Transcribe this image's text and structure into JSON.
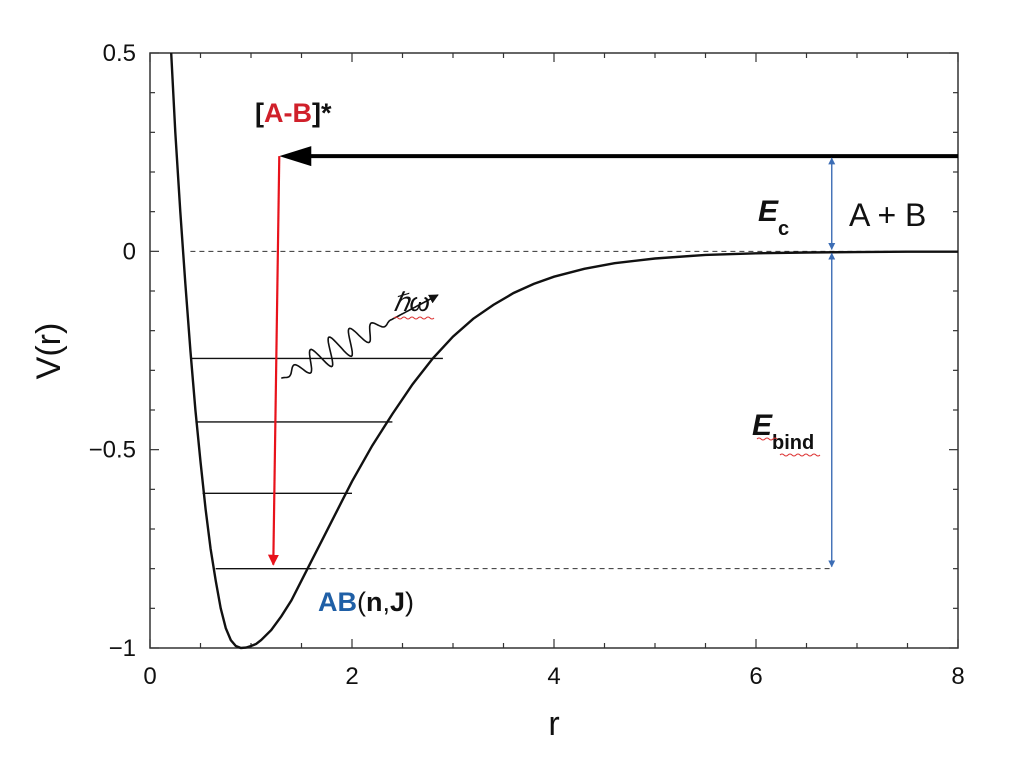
{
  "chart_data": {
    "type": "line",
    "xlabel": "r",
    "ylabel": "V(r)",
    "xlim": [
      0,
      8
    ],
    "ylim": [
      -1,
      0.5
    ],
    "x_ticks": [
      "0",
      "2",
      "4",
      "6",
      "8"
    ],
    "y_ticks": [
      "0.5",
      "0",
      "−0.5",
      "−1"
    ],
    "y_tick_values": [
      0.5,
      0,
      -0.5,
      -1
    ],
    "x_tick_values": [
      0,
      2,
      4,
      6,
      8
    ],
    "grid": false,
    "series": [
      {
        "x": [
          0.21,
          0.25,
          0.3,
          0.35,
          0.4,
          0.45,
          0.5,
          0.55,
          0.6,
          0.65,
          0.7,
          0.75,
          0.8,
          0.85,
          0.9,
          0.95,
          1.0,
          1.05,
          1.1,
          1.2,
          1.3,
          1.4,
          1.5,
          1.6,
          1.7,
          1.8,
          1.9,
          2.0,
          2.2,
          2.4,
          2.6,
          2.8,
          3.0,
          3.2,
          3.4,
          3.6,
          3.8,
          4.0,
          4.3,
          4.6,
          5.0,
          5.5,
          6.0,
          6.5,
          7.0,
          7.5,
          8.0
        ],
        "y": [
          0.5,
          0.3,
          0.1,
          -0.08,
          -0.25,
          -0.4,
          -0.53,
          -0.65,
          -0.75,
          -0.83,
          -0.9,
          -0.95,
          -0.98,
          -0.995,
          -1.0,
          -0.999,
          -0.995,
          -0.99,
          -0.98,
          -0.955,
          -0.92,
          -0.88,
          -0.83,
          -0.78,
          -0.73,
          -0.68,
          -0.63,
          -0.58,
          -0.49,
          -0.41,
          -0.335,
          -0.27,
          -0.215,
          -0.17,
          -0.135,
          -0.105,
          -0.082,
          -0.064,
          -0.044,
          -0.03,
          -0.018,
          -0.009,
          -0.005,
          -0.003,
          -0.002,
          -0.001,
          -0.001
        ]
      }
    ],
    "vib_levels": [
      {
        "y": -0.27,
        "x_from": 0.4,
        "x_to": 2.9
      },
      {
        "y": -0.43,
        "x_from": 0.45,
        "x_to": 2.4
      },
      {
        "y": -0.61,
        "x_from": 0.52,
        "x_to": 2.0
      },
      {
        "y": -0.8,
        "x_from": 0.65,
        "x_to": 1.6
      }
    ],
    "incoming_energy": 0.24,
    "ec_arrow_x": 6.75,
    "transition_x": 1.28
  },
  "annotations": {
    "complex_open": "[",
    "complex_species": "A-B",
    "complex_close": "]*",
    "photon": "ℏω",
    "ec_symbol": "E",
    "ec_subscript": "c",
    "asymptote": "A + B",
    "ebind_symbol": "E",
    "ebind_subscript": "bind",
    "product_species": "AB",
    "product_open": "(",
    "product_n": "n",
    "product_comma": ",",
    "product_j": "J",
    "product_close": ")"
  },
  "colors": {
    "curve": "#111111",
    "complex_red": "#d0202a",
    "transition_arrow": "#e8121b",
    "energy_arrows": "#3c6db5",
    "product_blue": "#1f5fa6"
  }
}
